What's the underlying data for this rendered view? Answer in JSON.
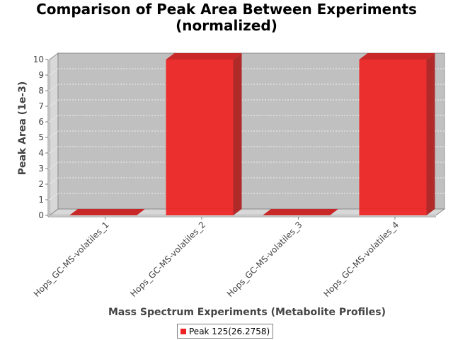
{
  "chart_data": {
    "type": "bar",
    "title": "Comparison of Peak Area Between Experiments\n(normalized)",
    "title_lines": [
      "Comparison of Peak Area Between Experiments",
      "(normalized)"
    ],
    "xlabel": "Mass Spectrum Experiments (Metabolite Profiles)",
    "ylabel": "Peak Area (1e-3)",
    "categories": [
      "Hops_GC-MS-volatiles_1",
      "Hops_GC-MS-volatiles_2",
      "Hops_GC-MS-volatiles_3",
      "Hops_GC-MS-volatiles_4"
    ],
    "series": [
      {
        "name": "Peak 125(26.2758)",
        "values": [
          0,
          10,
          0,
          10
        ],
        "color": "#ee2222"
      }
    ],
    "ylim": [
      0,
      10
    ],
    "yticks": [
      "0",
      "1",
      "2",
      "3",
      "4",
      "5",
      "6",
      "7",
      "8",
      "9",
      "10"
    ],
    "grid": true,
    "legend_position": "bottom",
    "style": "3d",
    "colors": {
      "plot_background": "#c0c0c0",
      "grid": "#ffffff",
      "bar": "#ee2222"
    }
  }
}
